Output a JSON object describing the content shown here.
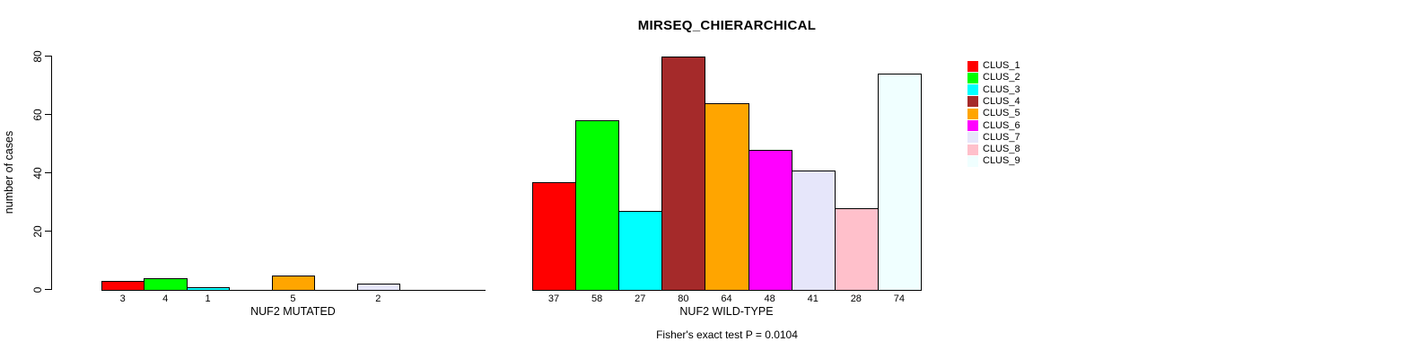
{
  "title": "MIRSEQ_CHIERARCHICAL",
  "y_axis": {
    "label": "number of cases",
    "ticks": [
      0,
      20,
      40,
      60,
      80
    ],
    "ylim": [
      0,
      80
    ]
  },
  "footer": "Fisher's exact test P = 0.0104",
  "palette": [
    "#FF0000",
    "#00FF00",
    "#00FFFF",
    "#A52A2A",
    "#FFA500",
    "#FF00FF",
    "#E6E6FA",
    "#FFC0CB",
    "#F0FFFF"
  ],
  "legend": {
    "position": "right",
    "items": [
      {
        "label": "CLUS_1",
        "color": "#FF0000"
      },
      {
        "label": "CLUS_2",
        "color": "#00FF00"
      },
      {
        "label": "CLUS_3",
        "color": "#00FFFF"
      },
      {
        "label": "CLUS_4",
        "color": "#A52A2A"
      },
      {
        "label": "CLUS_5",
        "color": "#FFA500"
      },
      {
        "label": "CLUS_6",
        "color": "#FF00FF"
      },
      {
        "label": "CLUS_7",
        "color": "#E6E6FA"
      },
      {
        "label": "CLUS_8",
        "color": "#FFC0CB"
      },
      {
        "label": "CLUS_9",
        "color": "#F0FFFF"
      }
    ]
  },
  "chart_data": [
    {
      "type": "bar",
      "xlabel": "NUF2 MUTATED",
      "categories": [
        "CLUS_1",
        "CLUS_2",
        "CLUS_3",
        "CLUS_4",
        "CLUS_5",
        "CLUS_6",
        "CLUS_7",
        "CLUS_8",
        "CLUS_9"
      ],
      "values": [
        3,
        4,
        1,
        0,
        5,
        0,
        2,
        0,
        0
      ],
      "bar_labels": [
        "3",
        "4",
        "1",
        "",
        "5",
        "",
        "2",
        "",
        ""
      ],
      "colors": [
        "#FF0000",
        "#00FF00",
        "#00FFFF",
        "#A52A2A",
        "#FFA500",
        "#FF00FF",
        "#E6E6FA",
        "#FFC0CB",
        "#F0FFFF"
      ],
      "ylim": [
        0,
        80
      ],
      "grid": false
    },
    {
      "type": "bar",
      "xlabel": "NUF2 WILD-TYPE",
      "categories": [
        "CLUS_1",
        "CLUS_2",
        "CLUS_3",
        "CLUS_4",
        "CLUS_5",
        "CLUS_6",
        "CLUS_7",
        "CLUS_8",
        "CLUS_9"
      ],
      "values": [
        37,
        58,
        27,
        80,
        64,
        48,
        41,
        28,
        74
      ],
      "bar_labels": [
        "37",
        "58",
        "27",
        "80",
        "64",
        "48",
        "41",
        "28",
        "74"
      ],
      "colors": [
        "#FF0000",
        "#00FF00",
        "#00FFFF",
        "#A52A2A",
        "#FFA500",
        "#FF00FF",
        "#E6E6FA",
        "#FFC0CB",
        "#F0FFFF"
      ],
      "ylim": [
        0,
        80
      ],
      "grid": false
    }
  ]
}
